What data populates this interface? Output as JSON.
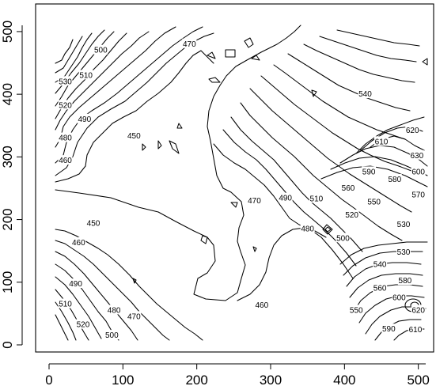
{
  "chart_data": {
    "type": "contour",
    "title": "",
    "xlabel": "",
    "ylabel": "",
    "xlim": [
      0,
      510
    ],
    "ylim": [
      0,
      510
    ],
    "x_ticks": [
      0,
      100,
      200,
      300,
      400,
      500
    ],
    "y_ticks": [
      0,
      100,
      200,
      300,
      400,
      500
    ],
    "y_tick_rotation": "vertical",
    "grid": false,
    "legend": "none",
    "levels": [
      450,
      460,
      470,
      480,
      490,
      500,
      510,
      520,
      530,
      540,
      550,
      560,
      570,
      580,
      590,
      600,
      610,
      620,
      630
    ],
    "contour_labels": [
      {
        "text": "500",
        "x": 70,
        "y": 470
      },
      {
        "text": "470",
        "x": 190,
        "y": 480
      },
      {
        "text": "510",
        "x": 50,
        "y": 430
      },
      {
        "text": "530",
        "x": 22,
        "y": 420
      },
      {
        "text": "520",
        "x": 22,
        "y": 382
      },
      {
        "text": "490",
        "x": 48,
        "y": 360
      },
      {
        "text": "480",
        "x": 22,
        "y": 330
      },
      {
        "text": "450",
        "x": 115,
        "y": 333
      },
      {
        "text": "460",
        "x": 22,
        "y": 294
      },
      {
        "text": "450",
        "x": 60,
        "y": 194
      },
      {
        "text": "460",
        "x": 40,
        "y": 163
      },
      {
        "text": "490",
        "x": 36,
        "y": 97
      },
      {
        "text": "510",
        "x": 22,
        "y": 65
      },
      {
        "text": "480",
        "x": 88,
        "y": 55
      },
      {
        "text": "470",
        "x": 115,
        "y": 45
      },
      {
        "text": "520",
        "x": 46,
        "y": 32
      },
      {
        "text": "500",
        "x": 85,
        "y": 15
      },
      {
        "text": "470",
        "x": 278,
        "y": 230
      },
      {
        "text": "490",
        "x": 320,
        "y": 234
      },
      {
        "text": "510",
        "x": 362,
        "y": 233
      },
      {
        "text": "480",
        "x": 350,
        "y": 185
      },
      {
        "text": "500",
        "x": 398,
        "y": 170
      },
      {
        "text": "460",
        "x": 288,
        "y": 63
      },
      {
        "text": "540",
        "x": 428,
        "y": 400
      },
      {
        "text": "620",
        "x": 492,
        "y": 342
      },
      {
        "text": "610",
        "x": 450,
        "y": 324
      },
      {
        "text": "630",
        "x": 498,
        "y": 302
      },
      {
        "text": "590",
        "x": 433,
        "y": 276
      },
      {
        "text": "580",
        "x": 468,
        "y": 264
      },
      {
        "text": "600",
        "x": 500,
        "y": 276
      },
      {
        "text": "560",
        "x": 405,
        "y": 250
      },
      {
        "text": "570",
        "x": 500,
        "y": 239
      },
      {
        "text": "550",
        "x": 440,
        "y": 228
      },
      {
        "text": "520",
        "x": 410,
        "y": 207
      },
      {
        "text": "530",
        "x": 480,
        "y": 192
      },
      {
        "text": "530",
        "x": 480,
        "y": 148
      },
      {
        "text": "540",
        "x": 448,
        "y": 128
      },
      {
        "text": "580",
        "x": 482,
        "y": 102
      },
      {
        "text": "560",
        "x": 448,
        "y": 90
      },
      {
        "text": "600",
        "x": 474,
        "y": 75
      },
      {
        "text": "620",
        "x": 500,
        "y": 55
      },
      {
        "text": "550",
        "x": 416,
        "y": 55
      },
      {
        "text": "590",
        "x": 460,
        "y": 25
      },
      {
        "text": "610",
        "x": 496,
        "y": 24
      }
    ]
  }
}
